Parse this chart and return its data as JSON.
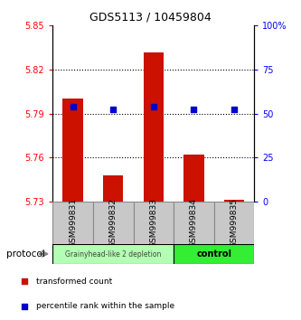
{
  "title": "GDS5113 / 10459804",
  "samples": [
    "GSM999831",
    "GSM999832",
    "GSM999833",
    "GSM999834",
    "GSM999835"
  ],
  "red_values": [
    5.8,
    5.748,
    5.832,
    5.762,
    5.731
  ],
  "blue_values": [
    5.795,
    5.793,
    5.795,
    5.793,
    5.793
  ],
  "red_base": 5.73,
  "ylim_left": [
    5.73,
    5.85
  ],
  "ylim_right": [
    0,
    100
  ],
  "left_ticks": [
    5.73,
    5.76,
    5.79,
    5.82,
    5.85
  ],
  "right_ticks": [
    0,
    25,
    50,
    75,
    100
  ],
  "right_tick_labels": [
    "0",
    "25",
    "50",
    "75",
    "100%"
  ],
  "grid_lines": [
    5.76,
    5.79,
    5.82
  ],
  "group1_label": "Grainyhead-like 2 depletion",
  "group2_label": "control",
  "group1_color": "#b3ffb3",
  "group2_color": "#33ee33",
  "bar_color": "#cc1100",
  "dot_color": "#0000cc",
  "bar_width": 0.5,
  "dot_size": 18,
  "protocol_label": "protocol",
  "legend_red": "transformed count",
  "legend_blue": "percentile rank within the sample",
  "label_gray": "#c8c8c8",
  "label_border": "#888888"
}
